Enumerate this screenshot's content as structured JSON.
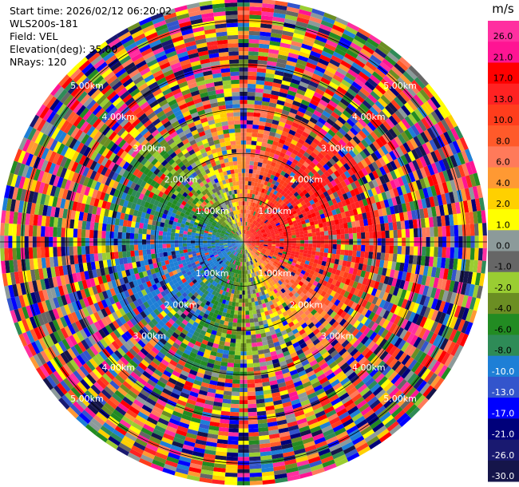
{
  "info": {
    "start_time": "Start time: 2026/02/12 06:20:02",
    "instrument": "WLS200s-181",
    "field": "Field: VEL",
    "elevation": "Elevation(deg): 35.00",
    "nrays": "NRays: 120"
  },
  "colorbar": {
    "unit": "m/s",
    "ticks": [
      "26.0",
      "21.0",
      "17.0",
      "13.0",
      "10.0",
      "8.0",
      "6.0",
      "4.0",
      "2.0",
      "1.0",
      "0.0",
      "-1.0",
      "-2.0",
      "-4.0",
      "-6.0",
      "-8.0",
      "-10.0",
      "-13.0",
      "-17.0",
      "-21.0",
      "-26.0",
      "-30.0"
    ],
    "colors": [
      "#ff2fa0",
      "#ff1493",
      "#ff0000",
      "#ff2222",
      "#ff3d1c",
      "#ff5a2a",
      "#ff7a5a",
      "#ff9933",
      "#ffd000",
      "#ffff00",
      "#8c9a9a",
      "#666666",
      "#9acd32",
      "#6b8e23",
      "#228b22",
      "#2e8b57",
      "#1e7fd6",
      "#3355cc",
      "#0000ff",
      "#00007a",
      "#191970",
      "#15154a"
    ]
  },
  "chart_data": {
    "type": "heatmap",
    "title": "",
    "field": "VEL",
    "units": "m/s",
    "elevation_deg": 35.0,
    "n_rays": 120,
    "range_rings_km": [
      1.0,
      2.0,
      3.0,
      4.0,
      5.0
    ],
    "ring_labels": [
      "1.00km",
      "2.00km",
      "3.00km",
      "4.00km",
      "5.00km"
    ],
    "max_range_km": 5.5,
    "value_range": [
      -30.0,
      26.0
    ],
    "pattern": "positive velocities (yellow/orange/red) on east and southeast side near center, negative (blue/green) on west side, outer gates noisy"
  }
}
